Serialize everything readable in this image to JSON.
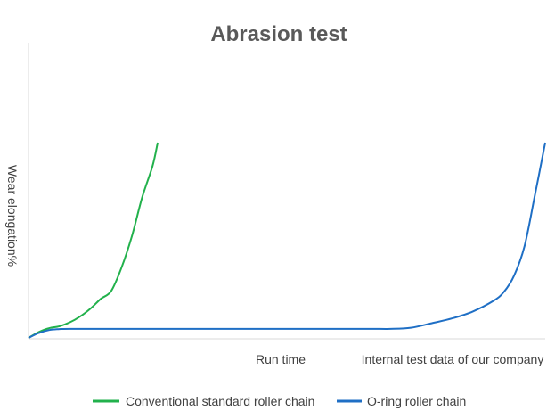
{
  "chart_data": {
    "type": "line",
    "title": "Abrasion test",
    "xlabel": "Run time",
    "ylabel": "Wear elongation%",
    "annotation": "Internal test data of our company",
    "x_ticks_shown": false,
    "y_ticks_shown": false,
    "grid": false,
    "legend_placement": "bottom",
    "xlim": [
      0,
      100
    ],
    "ylim": [
      0,
      100
    ],
    "series": [
      {
        "name": "Conventional standard roller chain",
        "color": "#22b14c",
        "x": [
          0,
          2,
          4,
          6,
          8,
          10,
          12,
          14,
          16,
          18,
          20,
          22,
          24,
          25
        ],
        "y": [
          0,
          3,
          5,
          6,
          8,
          11,
          15,
          20,
          24,
          36,
          52,
          72,
          88,
          100
        ]
      },
      {
        "name": "O-ring roller chain",
        "color": "#1f6fc5",
        "x": [
          0,
          2,
          4,
          6,
          8,
          20,
          40,
          60,
          68,
          70,
          74,
          78,
          82,
          86,
          90,
          92,
          94,
          96,
          98,
          100
        ],
        "y": [
          0,
          2.5,
          4,
          4.5,
          4.6,
          4.6,
          4.6,
          4.6,
          4.6,
          4.6,
          5.2,
          7.5,
          10,
          13.5,
          19,
          23.5,
          32,
          47,
          73,
          100
        ]
      }
    ]
  }
}
